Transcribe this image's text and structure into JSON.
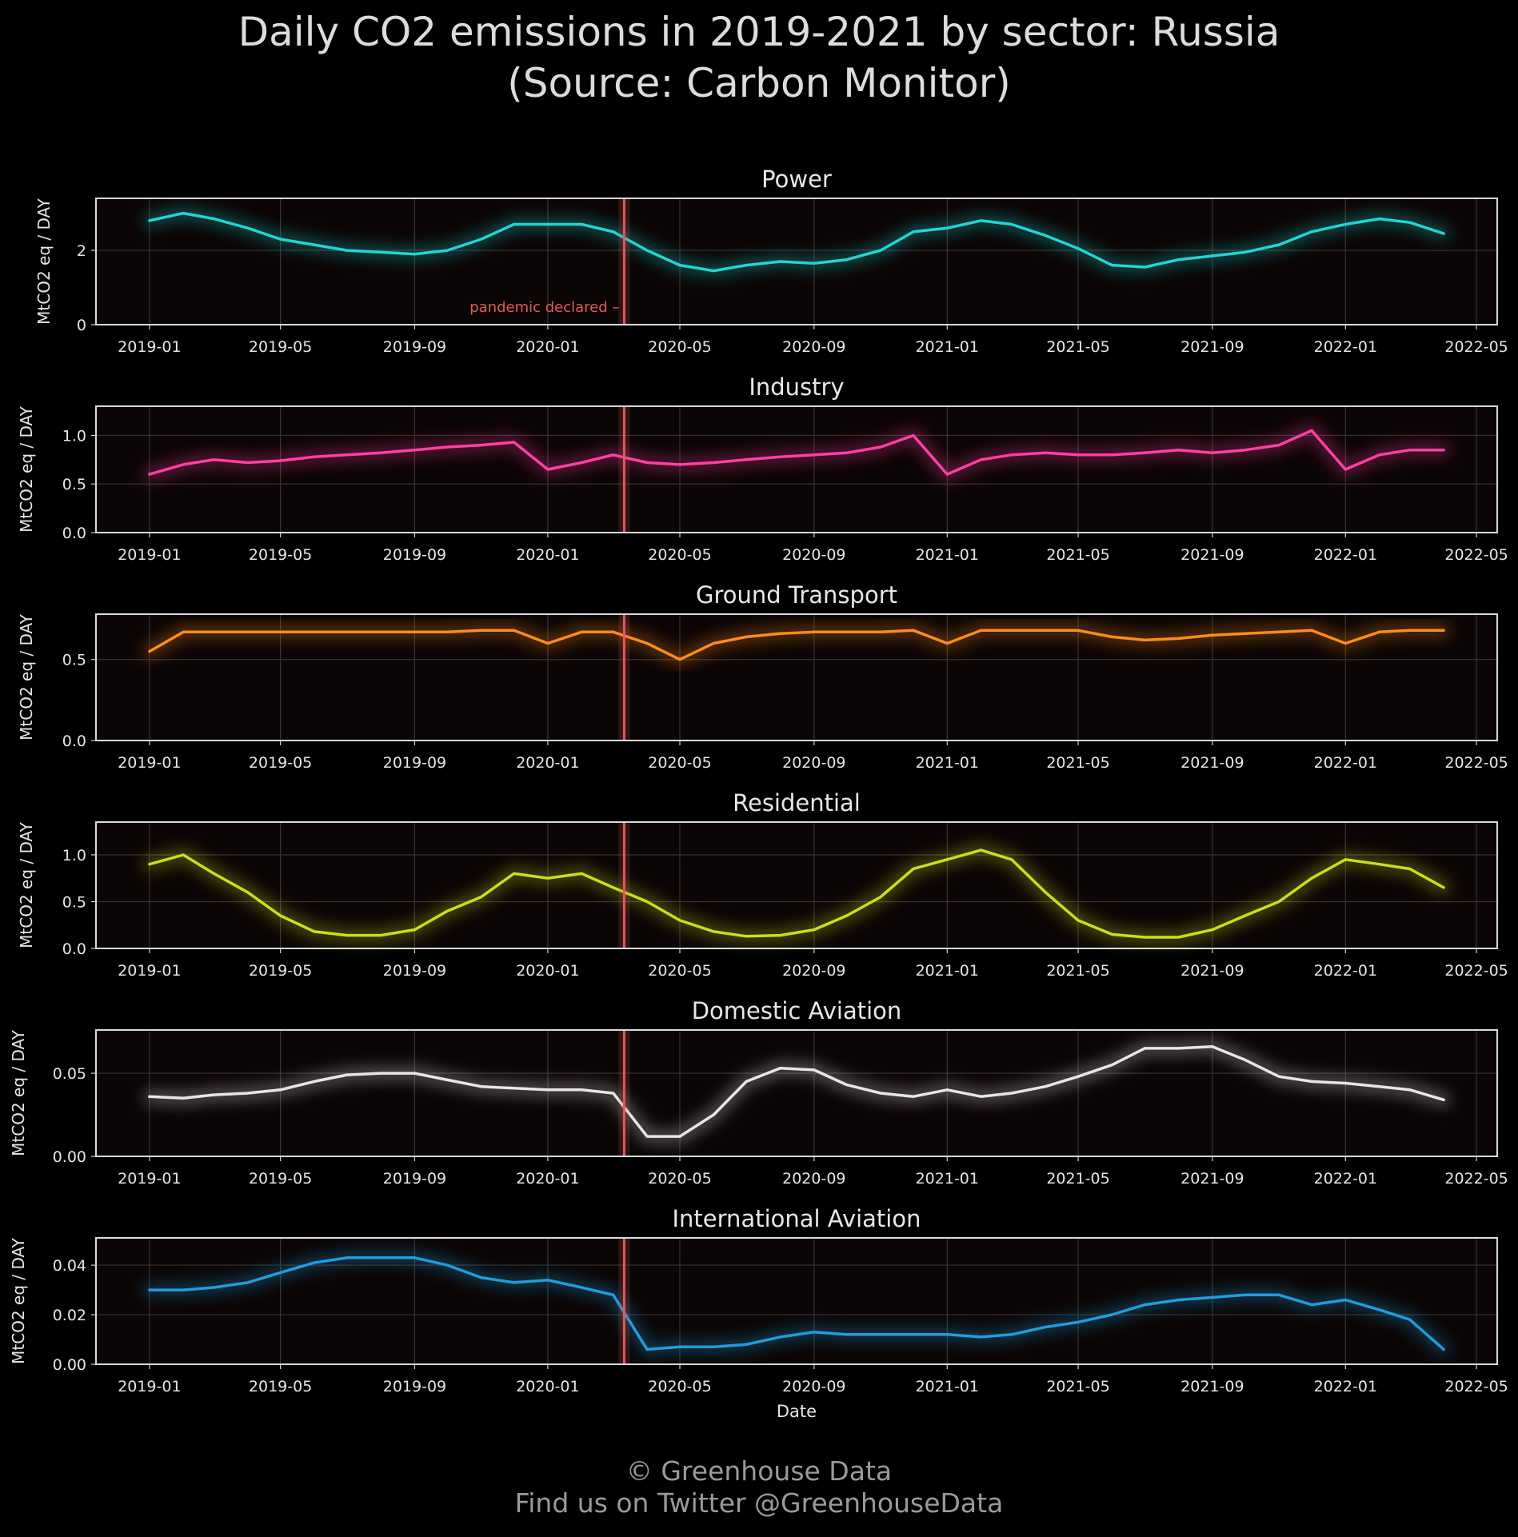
{
  "title_line1": "Daily CO2 emissions in 2019-2021 by sector: Russia",
  "title_line2": "(Source: Carbon Monitor)",
  "footer_line1": "© Greenhouse Data",
  "footer_line2": "Find us on Twitter @GreenhouseData",
  "annotation": {
    "text": "pandemic declared",
    "date": "2020-03-11",
    "color": "#e05a5a"
  },
  "xlabel": "Date",
  "x_ticks": [
    "2019-01",
    "2019-05",
    "2019-09",
    "2020-01",
    "2020-05",
    "2020-09",
    "2021-01",
    "2021-05",
    "2021-09",
    "2022-01",
    "2022-05"
  ],
  "x_range": [
    "2018-11-13",
    "2022-05-20"
  ],
  "chart_data": [
    {
      "type": "line",
      "title": "Power",
      "ylabel": "MtCO2 eq / DAY",
      "color": "#1fd6d6",
      "ylim": [
        0,
        3.4
      ],
      "yticks": [
        0,
        2
      ],
      "ytick_labels": [
        "0",
        "2"
      ],
      "series": [
        {
          "x": [
            "2019-01-01",
            "2019-02-01",
            "2019-03-01",
            "2019-04-01",
            "2019-05-01",
            "2019-06-01",
            "2019-07-01",
            "2019-08-01",
            "2019-09-01",
            "2019-10-01",
            "2019-11-01",
            "2019-12-01",
            "2020-01-01",
            "2020-02-01",
            "2020-03-01",
            "2020-04-01",
            "2020-05-01",
            "2020-06-01",
            "2020-07-01",
            "2020-08-01",
            "2020-09-01",
            "2020-10-01",
            "2020-11-01",
            "2020-12-01",
            "2021-01-01",
            "2021-02-01",
            "2021-03-01",
            "2021-04-01",
            "2021-05-01",
            "2021-06-01",
            "2021-07-01",
            "2021-08-01",
            "2021-09-01",
            "2021-10-01",
            "2021-11-01",
            "2021-12-01",
            "2022-01-01",
            "2022-02-01",
            "2022-03-01",
            "2022-04-01"
          ],
          "y": [
            2.8,
            3.0,
            2.85,
            2.6,
            2.3,
            2.15,
            2.0,
            1.95,
            1.9,
            2.0,
            2.3,
            2.7,
            2.7,
            2.7,
            2.5,
            2.0,
            1.6,
            1.45,
            1.6,
            1.7,
            1.65,
            1.75,
            2.0,
            2.5,
            2.6,
            2.8,
            2.7,
            2.4,
            2.05,
            1.6,
            1.55,
            1.75,
            1.85,
            1.95,
            2.15,
            2.5,
            2.7,
            2.85,
            2.75,
            2.45
          ]
        }
      ]
    },
    {
      "type": "line",
      "title": "Industry",
      "ylabel": "MtCO2 eq / DAY",
      "color": "#ff3fa4",
      "ylim": [
        0,
        1.3
      ],
      "yticks": [
        0,
        0.5,
        1.0
      ],
      "ytick_labels": [
        "0.0",
        "0.5",
        "1.0"
      ],
      "series": [
        {
          "x": [
            "2019-01-01",
            "2019-02-01",
            "2019-03-01",
            "2019-04-01",
            "2019-05-01",
            "2019-06-01",
            "2019-07-01",
            "2019-08-01",
            "2019-09-01",
            "2019-10-01",
            "2019-11-01",
            "2019-12-01",
            "2020-01-01",
            "2020-02-01",
            "2020-03-01",
            "2020-04-01",
            "2020-05-01",
            "2020-06-01",
            "2020-07-01",
            "2020-08-01",
            "2020-09-01",
            "2020-10-01",
            "2020-11-01",
            "2020-12-01",
            "2021-01-01",
            "2021-02-01",
            "2021-03-01",
            "2021-04-01",
            "2021-05-01",
            "2021-06-01",
            "2021-07-01",
            "2021-08-01",
            "2021-09-01",
            "2021-10-01",
            "2021-11-01",
            "2021-12-01",
            "2022-01-01",
            "2022-02-01",
            "2022-03-01",
            "2022-04-01"
          ],
          "y": [
            0.6,
            0.7,
            0.75,
            0.72,
            0.74,
            0.78,
            0.8,
            0.82,
            0.85,
            0.88,
            0.9,
            0.93,
            0.65,
            0.72,
            0.8,
            0.72,
            0.7,
            0.72,
            0.75,
            0.78,
            0.8,
            0.82,
            0.88,
            1.0,
            0.6,
            0.75,
            0.8,
            0.82,
            0.8,
            0.8,
            0.82,
            0.85,
            0.82,
            0.85,
            0.9,
            1.05,
            0.65,
            0.8,
            0.85,
            0.85
          ]
        }
      ]
    },
    {
      "type": "line",
      "title": "Ground Transport",
      "ylabel": "MtCO2 eq / DAY",
      "color": "#ff8c1a",
      "ylim": [
        0,
        0.78
      ],
      "yticks": [
        0,
        0.5
      ],
      "ytick_labels": [
        "0.0",
        "0.5"
      ],
      "series": [
        {
          "x": [
            "2019-01-01",
            "2019-02-01",
            "2019-03-01",
            "2019-04-01",
            "2019-05-01",
            "2019-06-01",
            "2019-07-01",
            "2019-08-01",
            "2019-09-01",
            "2019-10-01",
            "2019-11-01",
            "2019-12-01",
            "2020-01-01",
            "2020-02-01",
            "2020-03-01",
            "2020-04-01",
            "2020-05-01",
            "2020-06-01",
            "2020-07-01",
            "2020-08-01",
            "2020-09-01",
            "2020-10-01",
            "2020-11-01",
            "2020-12-01",
            "2021-01-01",
            "2021-02-01",
            "2021-03-01",
            "2021-04-01",
            "2021-05-01",
            "2021-06-01",
            "2021-07-01",
            "2021-08-01",
            "2021-09-01",
            "2021-10-01",
            "2021-11-01",
            "2021-12-01",
            "2022-01-01",
            "2022-02-01",
            "2022-03-01",
            "2022-04-01"
          ],
          "y": [
            0.55,
            0.67,
            0.67,
            0.67,
            0.67,
            0.67,
            0.67,
            0.67,
            0.67,
            0.67,
            0.68,
            0.68,
            0.6,
            0.67,
            0.67,
            0.6,
            0.5,
            0.6,
            0.64,
            0.66,
            0.67,
            0.67,
            0.67,
            0.68,
            0.6,
            0.68,
            0.68,
            0.68,
            0.68,
            0.64,
            0.62,
            0.63,
            0.65,
            0.66,
            0.67,
            0.68,
            0.6,
            0.67,
            0.68,
            0.68
          ]
        }
      ]
    },
    {
      "type": "line",
      "title": "Residential",
      "ylabel": "MtCO2 eq / DAY",
      "color": "#c8e01a",
      "ylim": [
        0,
        1.35
      ],
      "yticks": [
        0,
        0.5,
        1.0
      ],
      "ytick_labels": [
        "0.0",
        "0.5",
        "1.0"
      ],
      "series": [
        {
          "x": [
            "2019-01-01",
            "2019-02-01",
            "2019-03-01",
            "2019-04-01",
            "2019-05-01",
            "2019-06-01",
            "2019-07-01",
            "2019-08-01",
            "2019-09-01",
            "2019-10-01",
            "2019-11-01",
            "2019-12-01",
            "2020-01-01",
            "2020-02-01",
            "2020-03-01",
            "2020-04-01",
            "2020-05-01",
            "2020-06-01",
            "2020-07-01",
            "2020-08-01",
            "2020-09-01",
            "2020-10-01",
            "2020-11-01",
            "2020-12-01",
            "2021-01-01",
            "2021-02-01",
            "2021-03-01",
            "2021-04-01",
            "2021-05-01",
            "2021-06-01",
            "2021-07-01",
            "2021-08-01",
            "2021-09-01",
            "2021-10-01",
            "2021-11-01",
            "2021-12-01",
            "2022-01-01",
            "2022-02-01",
            "2022-03-01",
            "2022-04-01"
          ],
          "y": [
            0.9,
            1.0,
            0.8,
            0.6,
            0.35,
            0.18,
            0.14,
            0.14,
            0.2,
            0.4,
            0.55,
            0.8,
            0.75,
            0.8,
            0.65,
            0.5,
            0.3,
            0.18,
            0.13,
            0.14,
            0.2,
            0.35,
            0.55,
            0.85,
            0.95,
            1.05,
            0.95,
            0.6,
            0.3,
            0.15,
            0.12,
            0.12,
            0.2,
            0.35,
            0.5,
            0.75,
            0.95,
            0.9,
            0.85,
            0.65
          ]
        }
      ]
    },
    {
      "type": "line",
      "title": "Domestic Aviation",
      "ylabel": "MtCO2 eq / DAY",
      "color": "#e6e6e6",
      "ylim": [
        0,
        0.076
      ],
      "yticks": [
        0,
        0.05
      ],
      "ytick_labels": [
        "0.00",
        "0.05"
      ],
      "series": [
        {
          "x": [
            "2019-01-01",
            "2019-02-01",
            "2019-03-01",
            "2019-04-01",
            "2019-05-01",
            "2019-06-01",
            "2019-07-01",
            "2019-08-01",
            "2019-09-01",
            "2019-10-01",
            "2019-11-01",
            "2019-12-01",
            "2020-01-01",
            "2020-02-01",
            "2020-03-01",
            "2020-04-01",
            "2020-05-01",
            "2020-06-01",
            "2020-07-01",
            "2020-08-01",
            "2020-09-01",
            "2020-10-01",
            "2020-11-01",
            "2020-12-01",
            "2021-01-01",
            "2021-02-01",
            "2021-03-01",
            "2021-04-01",
            "2021-05-01",
            "2021-06-01",
            "2021-07-01",
            "2021-08-01",
            "2021-09-01",
            "2021-10-01",
            "2021-11-01",
            "2021-12-01",
            "2022-01-01",
            "2022-02-01",
            "2022-03-01",
            "2022-04-01"
          ],
          "y": [
            0.036,
            0.035,
            0.037,
            0.038,
            0.04,
            0.045,
            0.049,
            0.05,
            0.05,
            0.046,
            0.042,
            0.041,
            0.04,
            0.04,
            0.038,
            0.012,
            0.012,
            0.025,
            0.045,
            0.053,
            0.052,
            0.043,
            0.038,
            0.036,
            0.04,
            0.036,
            0.038,
            0.042,
            0.048,
            0.055,
            0.065,
            0.065,
            0.066,
            0.058,
            0.048,
            0.045,
            0.044,
            0.042,
            0.04,
            0.034
          ]
        }
      ]
    },
    {
      "type": "line",
      "title": "International Aviation",
      "ylabel": "MtCO2 eq / DAY",
      "color": "#1f9de0",
      "ylim": [
        0,
        0.051
      ],
      "yticks": [
        0,
        0.02,
        0.04
      ],
      "ytick_labels": [
        "0.00",
        "0.02",
        "0.04"
      ],
      "series": [
        {
          "x": [
            "2019-01-01",
            "2019-02-01",
            "2019-03-01",
            "2019-04-01",
            "2019-05-01",
            "2019-06-01",
            "2019-07-01",
            "2019-08-01",
            "2019-09-01",
            "2019-10-01",
            "2019-11-01",
            "2019-12-01",
            "2020-01-01",
            "2020-02-01",
            "2020-03-01",
            "2020-04-01",
            "2020-05-01",
            "2020-06-01",
            "2020-07-01",
            "2020-08-01",
            "2020-09-01",
            "2020-10-01",
            "2020-11-01",
            "2020-12-01",
            "2021-01-01",
            "2021-02-01",
            "2021-03-01",
            "2021-04-01",
            "2021-05-01",
            "2021-06-01",
            "2021-07-01",
            "2021-08-01",
            "2021-09-01",
            "2021-10-01",
            "2021-11-01",
            "2021-12-01",
            "2022-01-01",
            "2022-02-01",
            "2022-03-01",
            "2022-04-01"
          ],
          "y": [
            0.03,
            0.03,
            0.031,
            0.033,
            0.037,
            0.041,
            0.043,
            0.043,
            0.043,
            0.04,
            0.035,
            0.033,
            0.034,
            0.031,
            0.028,
            0.006,
            0.007,
            0.007,
            0.008,
            0.011,
            0.013,
            0.012,
            0.012,
            0.012,
            0.012,
            0.011,
            0.012,
            0.015,
            0.017,
            0.02,
            0.024,
            0.026,
            0.027,
            0.028,
            0.028,
            0.024,
            0.026,
            0.022,
            0.018,
            0.006
          ]
        }
      ]
    }
  ]
}
